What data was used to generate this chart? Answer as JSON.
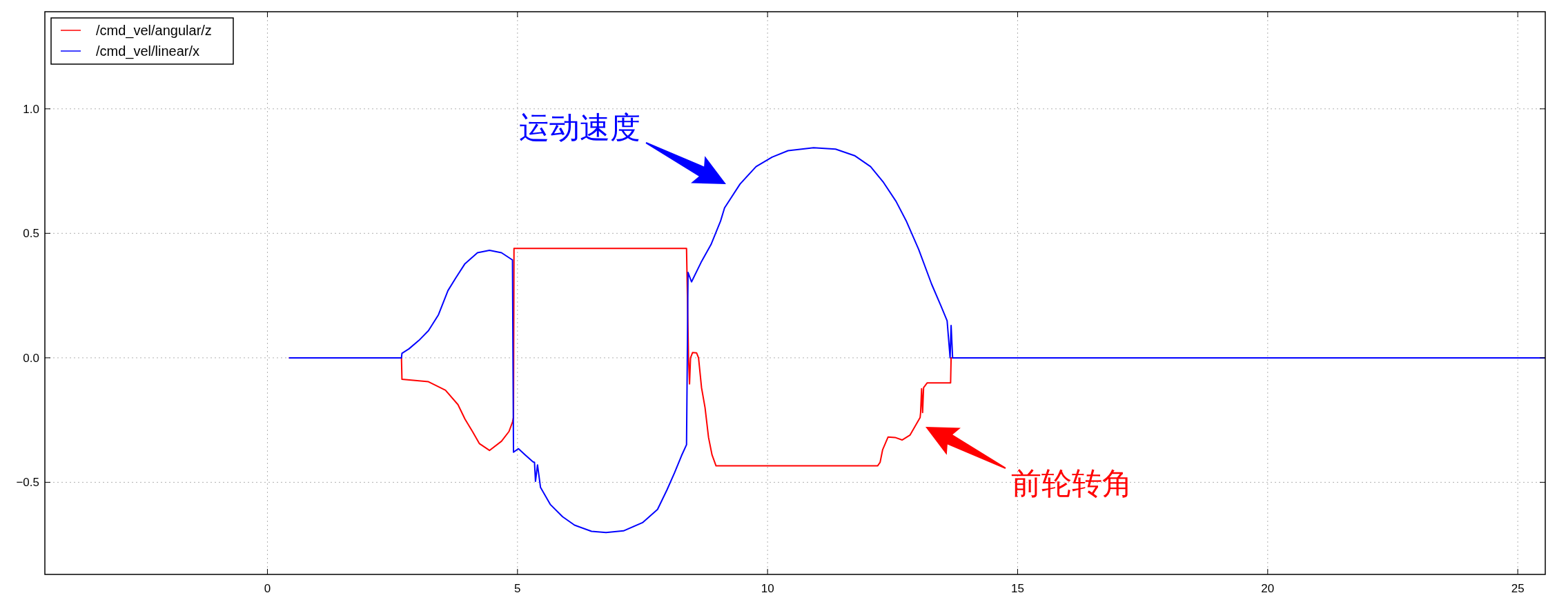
{
  "chart_data": {
    "type": "line",
    "xlim": [
      -4.45,
      25.55
    ],
    "xticks": [
      0,
      5,
      10,
      15,
      20,
      25
    ],
    "ylim": [
      -0.87,
      1.39
    ],
    "yticks": [
      {
        "value": -0.5,
        "label": "−0.5"
      },
      {
        "value": 0,
        "label": "0.0"
      },
      {
        "value": 0.5,
        "label": "0.5"
      },
      {
        "value": 1,
        "label": "1.0"
      }
    ],
    "grid": true,
    "legend": "top left",
    "line_style": "solid",
    "marker": "none",
    "series": [
      {
        "name": "/cmd_vel/angular/z",
        "color": "#ff0000",
        "x": [
          0.44,
          2.68,
          2.69,
          3.22,
          3.56,
          3.81,
          3.95,
          4.1,
          4.24,
          4.44,
          4.68,
          4.83,
          4.9,
          4.92,
          4.93,
          8.38,
          8.42,
          8.44,
          8.46,
          8.5,
          8.58,
          8.62,
          8.68,
          8.75,
          8.82,
          8.89,
          8.97,
          12.2,
          12.25,
          12.3,
          12.41,
          12.55,
          12.69,
          12.85,
          13.05,
          13.06,
          13.08,
          13.1,
          13.12,
          13.19,
          13.66,
          13.67,
          25.55
        ],
        "values": [
          0,
          0,
          -0.086,
          -0.096,
          -0.13,
          -0.188,
          -0.246,
          -0.296,
          -0.345,
          -0.372,
          -0.335,
          -0.296,
          -0.258,
          -0.24,
          0.439,
          0.439,
          0.0,
          -0.105,
          0.0,
          0.021,
          0.02,
          0.0,
          -0.12,
          -0.2,
          -0.32,
          -0.39,
          -0.434,
          -0.434,
          -0.42,
          -0.37,
          -0.318,
          -0.32,
          -0.33,
          -0.31,
          -0.24,
          -0.22,
          -0.124,
          -0.22,
          -0.12,
          -0.101,
          -0.101,
          0,
          0
        ]
      },
      {
        "name": "/cmd_vel/linear/x",
        "color": "#0000ff",
        "x": [
          0.44,
          2.68,
          2.69,
          2.83,
          3.03,
          3.22,
          3.42,
          3.61,
          3.76,
          3.95,
          4.2,
          4.44,
          4.68,
          4.9,
          4.92,
          5.02,
          5.17,
          5.31,
          5.34,
          5.36,
          5.4,
          5.46,
          5.66,
          5.9,
          6.14,
          6.48,
          6.77,
          7.12,
          7.5,
          7.8,
          7.99,
          8.14,
          8.28,
          8.38,
          8.41,
          8.48,
          8.67,
          8.87,
          9.06,
          9.14,
          9.45,
          9.77,
          10.09,
          10.41,
          10.92,
          11.36,
          11.74,
          12.06,
          12.32,
          12.57,
          12.77,
          13.02,
          13.28,
          13.47,
          13.59,
          13.65,
          13.67,
          13.7,
          25.55
        ],
        "values": [
          0,
          0,
          0.018,
          0.036,
          0.07,
          0.109,
          0.173,
          0.27,
          0.319,
          0.378,
          0.422,
          0.432,
          0.422,
          0.393,
          -0.379,
          -0.365,
          -0.393,
          -0.418,
          -0.42,
          -0.496,
          -0.43,
          -0.52,
          -0.59,
          -0.638,
          -0.672,
          -0.697,
          -0.702,
          -0.695,
          -0.662,
          -0.609,
          -0.53,
          -0.462,
          -0.393,
          -0.349,
          0.343,
          0.305,
          0.383,
          0.455,
          0.549,
          0.602,
          0.698,
          0.768,
          0.806,
          0.832,
          0.844,
          0.838,
          0.812,
          0.768,
          0.704,
          0.628,
          0.551,
          0.436,
          0.296,
          0.207,
          0.149,
          0,
          0.13,
          0,
          0
        ]
      }
    ],
    "annotations": [
      "运动速度",
      "前轮转角"
    ]
  }
}
